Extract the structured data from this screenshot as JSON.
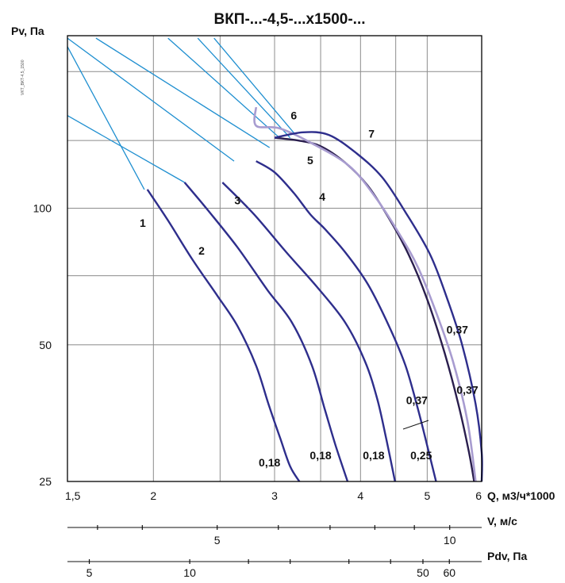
{
  "chart_data": {
    "type": "line",
    "title": "ВКП-...-4,5-...х1500-...",
    "side_code": "VKT_BKT-4,5_1500",
    "ylabel": "Pv, Па",
    "xlabel": "Q, м3/ч*1000",
    "x_scale": "log",
    "y_scale": "log",
    "xlim": [
      1.5,
      6
    ],
    "ylim": [
      25,
      240
    ],
    "x_ticks": [
      {
        "value": 1.5,
        "label": "1,5"
      },
      {
        "value": 2,
        "label": "2"
      },
      {
        "value": 3,
        "label": "3"
      },
      {
        "value": 4,
        "label": "4"
      },
      {
        "value": 5,
        "label": "5"
      },
      {
        "value": 6,
        "label": "6"
      }
    ],
    "x_grid": [
      2,
      2.5,
      3,
      3.5,
      4,
      4.5,
      5,
      6
    ],
    "y_ticks": [
      {
        "value": 25,
        "label": "25"
      },
      {
        "value": 50,
        "label": "50"
      },
      {
        "value": 100,
        "label": "100"
      }
    ],
    "y_grid": [
      50,
      71,
      100,
      141,
      200
    ],
    "grid": true,
    "system_lines": [
      {
        "name": "system-line-1",
        "points": [
          [
            1.5,
            227
          ],
          [
            1.94,
            110
          ]
        ]
      },
      {
        "name": "system-line-2",
        "points": [
          [
            1.5,
            160
          ],
          [
            2.22,
            114
          ]
        ]
      },
      {
        "name": "system-line-3",
        "points": [
          [
            1.5,
            237
          ],
          [
            2.62,
            127
          ]
        ]
      },
      {
        "name": "system-line-4",
        "points": [
          [
            1.65,
            237
          ],
          [
            2.95,
            136
          ]
        ]
      },
      {
        "name": "system-line-5",
        "points": [
          [
            2.1,
            237
          ],
          [
            3.05,
            143
          ]
        ]
      },
      {
        "name": "system-line-6",
        "points": [
          [
            2.32,
            237
          ],
          [
            3.16,
            143
          ]
        ]
      },
      {
        "name": "system-line-7",
        "points": [
          [
            2.45,
            237
          ],
          [
            3.22,
            145
          ]
        ]
      }
    ],
    "series": [
      {
        "name": "1",
        "power_label": "0,18",
        "color": "#2e2e8c",
        "points": [
          [
            1.96,
            110
          ],
          [
            2.1,
            94
          ],
          [
            2.28,
            77
          ],
          [
            2.48,
            64
          ],
          [
            2.65,
            55
          ],
          [
            2.82,
            45
          ],
          [
            2.94,
            37
          ],
          [
            3.06,
            31
          ],
          [
            3.16,
            27
          ],
          [
            3.26,
            25
          ]
        ]
      },
      {
        "name": "2",
        "power_label": "0,18",
        "color": "#2e2e8c",
        "points": [
          [
            2.22,
            114
          ],
          [
            2.4,
            99
          ],
          [
            2.65,
            82
          ],
          [
            2.93,
            66
          ],
          [
            3.18,
            56
          ],
          [
            3.4,
            45
          ],
          [
            3.55,
            36
          ],
          [
            3.68,
            30
          ],
          [
            3.83,
            25
          ]
        ]
      },
      {
        "name": "3",
        "power_label": "0,18",
        "color": "#2e2e8c",
        "points": [
          [
            2.52,
            114
          ],
          [
            2.8,
            97
          ],
          [
            3.12,
            80
          ],
          [
            3.46,
            67
          ],
          [
            3.8,
            56
          ],
          [
            4.06,
            46
          ],
          [
            4.23,
            38
          ],
          [
            4.36,
            31
          ],
          [
            4.49,
            25
          ]
        ]
      },
      {
        "name": "4",
        "power_label": "0,25",
        "color": "#2e2e8c",
        "points": [
          [
            2.82,
            127
          ],
          [
            3.0,
            120
          ],
          [
            3.2,
            108
          ],
          [
            3.38,
            97
          ],
          [
            3.55,
            90
          ],
          [
            3.8,
            80
          ],
          [
            4.1,
            68
          ],
          [
            4.4,
            55
          ],
          [
            4.65,
            45
          ],
          [
            4.85,
            36
          ],
          [
            5.0,
            30
          ],
          [
            5.15,
            25
          ]
        ]
      },
      {
        "name": "5",
        "power_label": "0,37",
        "color": "#2a1e4e",
        "points": [
          [
            3.0,
            143
          ],
          [
            3.25,
            141
          ],
          [
            3.5,
            137
          ],
          [
            3.8,
            126
          ],
          [
            4.1,
            112
          ],
          [
            4.4,
            95
          ],
          [
            4.7,
            79
          ],
          [
            5.0,
            63
          ],
          [
            5.3,
            48
          ],
          [
            5.55,
            37
          ],
          [
            5.75,
            29
          ],
          [
            5.85,
            25
          ]
        ]
      },
      {
        "name": "6",
        "power_label": "0,37",
        "color": "#a89cd0",
        "points": [
          [
            2.82,
            167
          ],
          [
            2.82,
            152
          ],
          [
            3.05,
            150
          ],
          [
            3.4,
            139
          ],
          [
            3.85,
            124
          ],
          [
            4.2,
            106
          ],
          [
            4.55,
            88
          ],
          [
            4.85,
            74
          ],
          [
            5.15,
            59
          ],
          [
            5.45,
            46
          ],
          [
            5.72,
            34
          ],
          [
            5.88,
            25
          ]
        ]
      },
      {
        "name": "7",
        "power_label": "0,37",
        "color": "#2e2e8c",
        "points": [
          [
            3.0,
            143
          ],
          [
            3.3,
            147
          ],
          [
            3.6,
            145
          ],
          [
            3.95,
            132
          ],
          [
            4.3,
            117
          ],
          [
            4.65,
            98
          ],
          [
            5.05,
            79
          ],
          [
            5.35,
            63
          ],
          [
            5.62,
            50
          ],
          [
            5.88,
            37
          ],
          [
            6.1,
            29
          ],
          [
            6.23,
            25
          ]
        ]
      }
    ],
    "curve_labels": [
      {
        "name": "1",
        "x": 1.93,
        "y": 91
      },
      {
        "name": "2",
        "x": 2.35,
        "y": 79
      },
      {
        "name": "3",
        "x": 2.65,
        "y": 102
      },
      {
        "name": "4",
        "x": 3.52,
        "y": 104
      },
      {
        "name": "5",
        "x": 3.38,
        "y": 125
      },
      {
        "name": "6",
        "x": 3.2,
        "y": 157
      },
      {
        "name": "7",
        "x": 4.15,
        "y": 143
      }
    ],
    "power_labels": [
      {
        "text": "0,18",
        "x": 2.95,
        "y": 27
      },
      {
        "text": "0,18",
        "x": 3.5,
        "y": 28
      },
      {
        "text": "0,18",
        "x": 4.18,
        "y": 28
      },
      {
        "text": "0,25",
        "x": 4.9,
        "y": 28
      },
      {
        "text": "0,37",
        "x": 4.83,
        "y": 37
      },
      {
        "text": "0,37",
        "x": 5.72,
        "y": 39
      },
      {
        "text": "0,37",
        "x": 5.53,
        "y": 53
      }
    ],
    "secondary_axes": [
      {
        "name": "velocity-axis",
        "label": "V, м/с",
        "scale": "log",
        "range": [
          3.2,
          11
        ],
        "ticks": [
          {
            "value": 3.5
          },
          {
            "value": 4
          },
          {
            "value": 5,
            "label": "5"
          },
          {
            "value": 6
          },
          {
            "value": 7
          },
          {
            "value": 8
          },
          {
            "value": 9
          },
          {
            "value": 10,
            "label": "10"
          }
        ]
      },
      {
        "name": "dynamic-pressure-axis",
        "label": "Pdv, Па",
        "scale": "log",
        "range": [
          4.3,
          75
        ],
        "ticks": [
          {
            "value": 5,
            "label": "5"
          },
          {
            "value": 10,
            "label": "10"
          },
          {
            "value": 15
          },
          {
            "value": 20
          },
          {
            "value": 30
          },
          {
            "value": 40
          },
          {
            "value": 50,
            "label": "50"
          },
          {
            "value": 60,
            "label": "60"
          }
        ]
      }
    ]
  }
}
